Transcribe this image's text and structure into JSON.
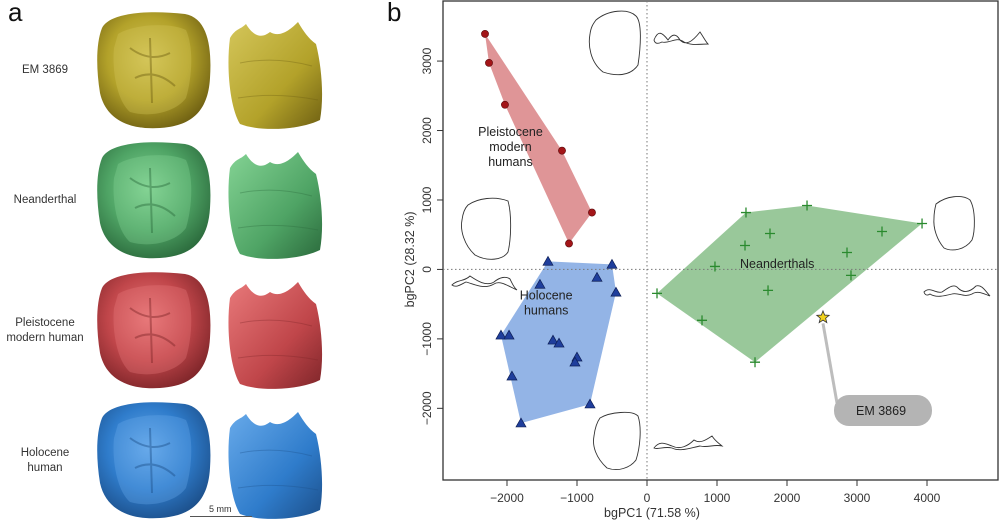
{
  "panel_a": {
    "letter": "a",
    "rows": [
      {
        "label": "EM 3869",
        "color": "#b3a22a",
        "dark": "#6e5f12",
        "light": "#d4c65a"
      },
      {
        "label": "Neanderthal",
        "color": "#4fa465",
        "dark": "#2b6a3c",
        "light": "#84d394"
      },
      {
        "label": "Pleistocene modern human",
        "label_lines": [
          "Pleistocene",
          "modern human"
        ],
        "color": "#c0464a",
        "dark": "#7e2529",
        "light": "#e8797a"
      },
      {
        "label": "Holocene human",
        "label_lines": [
          "Holocene",
          "human"
        ],
        "color": "#2f7ccb",
        "dark": "#1c4f8a",
        "light": "#68aaea"
      }
    ],
    "scale_bar_label": "5 mm"
  },
  "chart_data": {
    "type": "scatter",
    "panel_letter": "b",
    "xlabel": "bgPC1 (71.58 %)",
    "ylabel": "bgPC2 (28.32 %)",
    "xlim": [
      -2914,
      5014
    ],
    "ylim": [
      -3032,
      3865
    ],
    "xticks": [
      -2000,
      -1000,
      0,
      1000,
      2000,
      3000,
      4000
    ],
    "yticks": [
      -2000,
      -1000,
      0,
      1000,
      2000,
      3000
    ],
    "xtick_labels": [
      "−2000",
      "−1000",
      "0",
      "1000",
      "2000",
      "3000",
      "4000"
    ],
    "ytick_labels": [
      "−2000",
      "−1000",
      "0",
      "1000",
      "2000",
      "3000"
    ],
    "grid": false,
    "reference_lines": {
      "x": 0,
      "y": 0
    },
    "series": [
      {
        "name": "Pleistocene modern humans",
        "label_lines": [
          "Pleistocene",
          "modern",
          "humans"
        ],
        "label_pos": [
          -1950,
          1920
        ],
        "marker": "circle",
        "color": "#a31518",
        "hull_color": "#df9597",
        "points": [
          [
            -2314,
            3391
          ],
          [
            -2257,
            2974
          ],
          [
            -2029,
            2371
          ],
          [
            -1214,
            1710
          ],
          [
            -786,
            819
          ],
          [
            -1114,
            374
          ]
        ]
      },
      {
        "name": "Holocene humans",
        "label_lines": [
          "Holocene",
          "humans"
        ],
        "label_pos": [
          -1440,
          -430
        ],
        "marker": "triangle",
        "color": "#1f3e9c",
        "hull_color": "#93b4e6",
        "points": [
          [
            -1414,
            115
          ],
          [
            -500,
            72
          ],
          [
            -714,
            -115
          ],
          [
            -443,
            -330
          ],
          [
            -1529,
            -216
          ],
          [
            -2086,
            -948
          ],
          [
            -1971,
            -948
          ],
          [
            -1343,
            -1020
          ],
          [
            -1257,
            -1063
          ],
          [
            -1000,
            -1264
          ],
          [
            -1029,
            -1336
          ],
          [
            -1929,
            -1537
          ],
          [
            -814,
            -1940
          ],
          [
            -1800,
            -2213
          ]
        ]
      },
      {
        "name": "Neanderthals",
        "label_lines": [
          "Neanderthals"
        ],
        "label_pos": [
          1860,
          20
        ],
        "marker": "plus",
        "color": "#2a8a2e",
        "hull_color": "#99c89a",
        "points": [
          [
            143,
            -345
          ],
          [
            1414,
            819
          ],
          [
            2286,
            920
          ],
          [
            3929,
            661
          ],
          [
            3357,
            546
          ],
          [
            2857,
            244
          ],
          [
            1757,
            517
          ],
          [
            1400,
            345
          ],
          [
            971,
            43
          ],
          [
            2914,
            -86
          ],
          [
            1729,
            -302
          ],
          [
            786,
            -733
          ],
          [
            1543,
            -1336
          ]
        ]
      },
      {
        "name": "EM 3869",
        "marker": "star",
        "color": "#f2d21c",
        "points": [
          [
            2514,
            -690
          ]
        ]
      }
    ],
    "annotation": {
      "text": "EM 3869",
      "target": "EM 3869",
      "box_color": "#b4b4b4"
    }
  }
}
